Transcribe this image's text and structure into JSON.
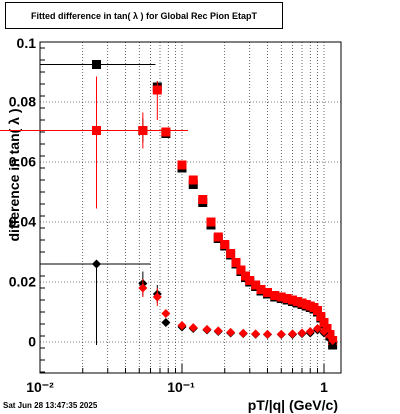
{
  "title": "Fitted difference in tan( λ ) for Global Rec Pion EtapT",
  "timestamp": "Sat Jun 28 13:47:35 2025",
  "chart_data": {
    "type": "scatter",
    "title": "Fitted difference in tan( λ ) for Global Rec Pion EtapT",
    "xlabel": "pT/|q| (GeV/c)",
    "ylabel": "difference in tan( λ )",
    "xscale": "log",
    "xlim": [
      0.01,
      1.2
    ],
    "ylim": [
      -0.01,
      0.1
    ],
    "grid": true,
    "x_tick_labels": [
      "10⁻²",
      "10⁻¹",
      "1"
    ],
    "y_tick_labels": [
      "0",
      "0.02",
      "0.04",
      "0.06",
      "0.08",
      "0.1"
    ],
    "series": [
      {
        "color": "#000000",
        "marker": "square",
        "points": [
          {
            "x": 0.025,
            "y": 0.0925,
            "xerr": [
              0.015,
              0.04
            ],
            "yerr": 0
          },
          {
            "x": 0.053,
            "y": 0.0705,
            "xerr": [
              0.05,
              0.057
            ],
            "yerr": 0.004
          },
          {
            "x": 0.067,
            "y": 0.085,
            "yerr": 0.002
          },
          {
            "x": 0.077,
            "y": 0.0695
          },
          {
            "x": 0.1,
            "y": 0.058
          },
          {
            "x": 0.12,
            "y": 0.0525
          },
          {
            "x": 0.14,
            "y": 0.0465
          },
          {
            "x": 0.16,
            "y": 0.039
          },
          {
            "x": 0.18,
            "y": 0.0345
          },
          {
            "x": 0.2,
            "y": 0.032
          },
          {
            "x": 0.22,
            "y": 0.029
          },
          {
            "x": 0.24,
            "y": 0.026
          },
          {
            "x": 0.26,
            "y": 0.0235
          },
          {
            "x": 0.28,
            "y": 0.0215
          },
          {
            "x": 0.3,
            "y": 0.02
          },
          {
            "x": 0.33,
            "y": 0.0185
          },
          {
            "x": 0.36,
            "y": 0.017
          },
          {
            "x": 0.4,
            "y": 0.016
          },
          {
            "x": 0.45,
            "y": 0.015
          },
          {
            "x": 0.5,
            "y": 0.0145
          },
          {
            "x": 0.55,
            "y": 0.014
          },
          {
            "x": 0.6,
            "y": 0.0135
          },
          {
            "x": 0.65,
            "y": 0.013
          },
          {
            "x": 0.7,
            "y": 0.0125
          },
          {
            "x": 0.75,
            "y": 0.012
          },
          {
            "x": 0.8,
            "y": 0.0115
          },
          {
            "x": 0.85,
            "y": 0.011
          },
          {
            "x": 0.9,
            "y": 0.01
          },
          {
            "x": 0.95,
            "y": 0.008
          },
          {
            "x": 1.0,
            "y": 0.006
          },
          {
            "x": 1.05,
            "y": 0.004
          },
          {
            "x": 1.1,
            "y": 0.002
          },
          {
            "x": 1.15,
            "y": -0.001
          }
        ]
      },
      {
        "color": "#ff0000",
        "marker": "square",
        "points": [
          {
            "x": 0.025,
            "y": 0.0705,
            "xerr": [
              0.025,
              0.03
            ],
            "yerr": [
              0.026,
              0.018
            ]
          },
          {
            "x": 0.053,
            "y": 0.0705,
            "xerr": [
              0.05,
              0.057
            ],
            "yerr": 0.006
          },
          {
            "x": 0.067,
            "y": 0.084,
            "yerr": [
              0.01,
              0.003
            ]
          },
          {
            "x": 0.077,
            "y": 0.07
          },
          {
            "x": 0.1,
            "y": 0.059
          },
          {
            "x": 0.12,
            "y": 0.054
          },
          {
            "x": 0.14,
            "y": 0.0475
          },
          {
            "x": 0.16,
            "y": 0.04
          },
          {
            "x": 0.18,
            "y": 0.035
          },
          {
            "x": 0.2,
            "y": 0.0325
          },
          {
            "x": 0.22,
            "y": 0.0295
          },
          {
            "x": 0.24,
            "y": 0.0265
          },
          {
            "x": 0.26,
            "y": 0.024
          },
          {
            "x": 0.28,
            "y": 0.022
          },
          {
            "x": 0.3,
            "y": 0.0205
          },
          {
            "x": 0.33,
            "y": 0.019
          },
          {
            "x": 0.36,
            "y": 0.0175
          },
          {
            "x": 0.4,
            "y": 0.0165
          },
          {
            "x": 0.45,
            "y": 0.0155
          },
          {
            "x": 0.5,
            "y": 0.015
          },
          {
            "x": 0.55,
            "y": 0.0145
          },
          {
            "x": 0.6,
            "y": 0.014
          },
          {
            "x": 0.65,
            "y": 0.0135
          },
          {
            "x": 0.7,
            "y": 0.013
          },
          {
            "x": 0.75,
            "y": 0.0125
          },
          {
            "x": 0.8,
            "y": 0.012
          },
          {
            "x": 0.85,
            "y": 0.0115
          },
          {
            "x": 0.9,
            "y": 0.0105
          },
          {
            "x": 0.95,
            "y": 0.0085
          },
          {
            "x": 1.0,
            "y": 0.0065
          },
          {
            "x": 1.05,
            "y": 0.0045
          },
          {
            "x": 1.1,
            "y": 0.0025
          },
          {
            "x": 1.15,
            "y": 0.0005
          }
        ]
      },
      {
        "color": "#000000",
        "marker": "diamond",
        "points": [
          {
            "x": 0.025,
            "y": 0.026,
            "xerr": [
              0.015,
              0.035
            ],
            "yerr": [
              0.027,
              0
            ]
          },
          {
            "x": 0.053,
            "y": 0.0195,
            "xerr": 0.003,
            "yerr": 0.004
          },
          {
            "x": 0.067,
            "y": 0.016,
            "yerr": 0.003
          },
          {
            "x": 0.077,
            "y": 0.0065
          },
          {
            "x": 0.1,
            "y": 0.005
          },
          {
            "x": 0.12,
            "y": 0.0045
          },
          {
            "x": 0.15,
            "y": 0.004
          },
          {
            "x": 0.18,
            "y": 0.0035
          },
          {
            "x": 0.22,
            "y": 0.003
          },
          {
            "x": 0.27,
            "y": 0.0028
          },
          {
            "x": 0.33,
            "y": 0.0026
          },
          {
            "x": 0.4,
            "y": 0.0025
          },
          {
            "x": 0.5,
            "y": 0.0025
          },
          {
            "x": 0.6,
            "y": 0.0025
          },
          {
            "x": 0.7,
            "y": 0.0028
          },
          {
            "x": 0.8,
            "y": 0.003
          },
          {
            "x": 0.9,
            "y": 0.004
          },
          {
            "x": 1.0,
            "y": 0.003
          },
          {
            "x": 1.1,
            "y": 0.001
          },
          {
            "x": 1.15,
            "y": -0.0005
          }
        ]
      },
      {
        "color": "#ff0000",
        "marker": "diamond",
        "points": [
          {
            "x": 0.053,
            "y": 0.018,
            "xerr": 0.003,
            "yerr": 0.003
          },
          {
            "x": 0.067,
            "y": 0.015,
            "yerr": 0.003
          },
          {
            "x": 0.077,
            "y": 0.0095
          },
          {
            "x": 0.1,
            "y": 0.0055
          },
          {
            "x": 0.12,
            "y": 0.0048
          },
          {
            "x": 0.15,
            "y": 0.0042
          },
          {
            "x": 0.18,
            "y": 0.0037
          },
          {
            "x": 0.22,
            "y": 0.0032
          },
          {
            "x": 0.27,
            "y": 0.0029
          },
          {
            "x": 0.33,
            "y": 0.0027
          },
          {
            "x": 0.4,
            "y": 0.0026
          },
          {
            "x": 0.5,
            "y": 0.0026
          },
          {
            "x": 0.6,
            "y": 0.0027
          },
          {
            "x": 0.7,
            "y": 0.003
          },
          {
            "x": 0.8,
            "y": 0.0035
          },
          {
            "x": 0.9,
            "y": 0.0045
          },
          {
            "x": 1.0,
            "y": 0.0035
          },
          {
            "x": 1.1,
            "y": 0.002
          },
          {
            "x": 1.15,
            "y": 0.0005
          }
        ]
      }
    ]
  }
}
